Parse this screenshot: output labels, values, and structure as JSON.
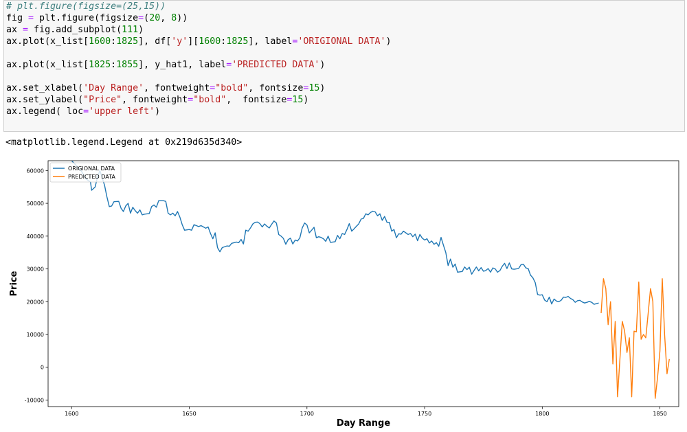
{
  "code_cell": {
    "lines": [
      [
        {
          "t": "# plt.figure(figsize=(25,15))",
          "c": "c"
        }
      ],
      [
        {
          "t": "fig ",
          "c": "p"
        },
        {
          "t": "=",
          "c": "o"
        },
        {
          "t": " plt.figure(figsize",
          "c": "p"
        },
        {
          "t": "=",
          "c": "o"
        },
        {
          "t": "(",
          "c": "p"
        },
        {
          "t": "20",
          "c": "n"
        },
        {
          "t": ", ",
          "c": "p"
        },
        {
          "t": "8",
          "c": "n"
        },
        {
          "t": "))",
          "c": "p"
        }
      ],
      [
        {
          "t": "ax ",
          "c": "p"
        },
        {
          "t": "=",
          "c": "o"
        },
        {
          "t": " fig.add_subplot(",
          "c": "p"
        },
        {
          "t": "111",
          "c": "n"
        },
        {
          "t": ")",
          "c": "p"
        }
      ],
      [
        {
          "t": "ax.plot(x_list[",
          "c": "p"
        },
        {
          "t": "1600",
          "c": "n"
        },
        {
          "t": ":",
          "c": "p"
        },
        {
          "t": "1825",
          "c": "n"
        },
        {
          "t": "], df[",
          "c": "p"
        },
        {
          "t": "'y'",
          "c": "s"
        },
        {
          "t": "][",
          "c": "p"
        },
        {
          "t": "1600",
          "c": "n"
        },
        {
          "t": ":",
          "c": "p"
        },
        {
          "t": "1825",
          "c": "n"
        },
        {
          "t": "], label",
          "c": "p"
        },
        {
          "t": "=",
          "c": "o"
        },
        {
          "t": "'ORIGIONAL DATA'",
          "c": "s"
        },
        {
          "t": ")",
          "c": "p"
        }
      ],
      [
        {
          "t": "",
          "c": "p"
        }
      ],
      [
        {
          "t": "ax.plot(x_list[",
          "c": "p"
        },
        {
          "t": "1825",
          "c": "n"
        },
        {
          "t": ":",
          "c": "p"
        },
        {
          "t": "1855",
          "c": "n"
        },
        {
          "t": "], y_hat1, label",
          "c": "p"
        },
        {
          "t": "=",
          "c": "o"
        },
        {
          "t": "'PREDICTED DATA'",
          "c": "s"
        },
        {
          "t": ")",
          "c": "p"
        }
      ],
      [
        {
          "t": "",
          "c": "p"
        }
      ],
      [
        {
          "t": "ax.set_xlabel(",
          "c": "p"
        },
        {
          "t": "'Day Range'",
          "c": "s"
        },
        {
          "t": ", fontweight",
          "c": "p"
        },
        {
          "t": "=",
          "c": "o"
        },
        {
          "t": "\"bold\"",
          "c": "s"
        },
        {
          "t": ", fontsize",
          "c": "p"
        },
        {
          "t": "=",
          "c": "o"
        },
        {
          "t": "15",
          "c": "n"
        },
        {
          "t": ")",
          "c": "p"
        }
      ],
      [
        {
          "t": "ax.set_ylabel(",
          "c": "p"
        },
        {
          "t": "\"Price\"",
          "c": "s"
        },
        {
          "t": ", fontweight",
          "c": "p"
        },
        {
          "t": "=",
          "c": "o"
        },
        {
          "t": "\"bold\"",
          "c": "s"
        },
        {
          "t": ",  fontsize",
          "c": "p"
        },
        {
          "t": "=",
          "c": "o"
        },
        {
          "t": "15",
          "c": "n"
        },
        {
          "t": ")",
          "c": "p"
        }
      ],
      [
        {
          "t": "ax.legend( loc",
          "c": "p"
        },
        {
          "t": "=",
          "c": "o"
        },
        {
          "t": "'upper left'",
          "c": "s"
        },
        {
          "t": ")",
          "c": "p"
        }
      ]
    ]
  },
  "output_text": "<matplotlib.legend.Legend at 0x219d635d340>",
  "chart_data": {
    "type": "line",
    "xlabel": "Day Range",
    "ylabel": "Price",
    "xlim": [
      1590,
      1858
    ],
    "ylim": [
      -12000,
      63000
    ],
    "xticks": [
      1600,
      1650,
      1700,
      1750,
      1800,
      1850
    ],
    "yticks": [
      -10000,
      0,
      10000,
      20000,
      30000,
      40000,
      50000,
      60000
    ],
    "legend_position": "upper left",
    "grid": false,
    "series": [
      {
        "name": "ORIGIONAL DATA",
        "color": "#1f77b4",
        "points": [
          [
            1600,
            63000
          ],
          [
            1604,
            60000
          ],
          [
            1606,
            57500
          ],
          [
            1608,
            56500
          ],
          [
            1608.5,
            54000
          ],
          [
            1610,
            55000
          ],
          [
            1611,
            58000
          ],
          [
            1612,
            60000
          ],
          [
            1614,
            55500
          ],
          [
            1615,
            52000
          ],
          [
            1616,
            49000
          ],
          [
            1617,
            49200
          ],
          [
            1618,
            50500
          ],
          [
            1620,
            50600
          ],
          [
            1621,
            48500
          ],
          [
            1622,
            47500
          ],
          [
            1623,
            49200
          ],
          [
            1624,
            50000
          ],
          [
            1625,
            47000
          ],
          [
            1626,
            48800
          ],
          [
            1627,
            47800
          ],
          [
            1628,
            47000
          ],
          [
            1629,
            48000
          ],
          [
            1630,
            46500
          ],
          [
            1631,
            46700
          ],
          [
            1633,
            46900
          ],
          [
            1634,
            49000
          ],
          [
            1635,
            49500
          ],
          [
            1636,
            48800
          ],
          [
            1637,
            50800
          ],
          [
            1639,
            50800
          ],
          [
            1640,
            50600
          ],
          [
            1641,
            47000
          ],
          [
            1642,
            46500
          ],
          [
            1643,
            47000
          ],
          [
            1644,
            46200
          ],
          [
            1645,
            47500
          ],
          [
            1646,
            45800
          ],
          [
            1647,
            43500
          ],
          [
            1648,
            41800
          ],
          [
            1650,
            42000
          ],
          [
            1651,
            41800
          ],
          [
            1652,
            43500
          ],
          [
            1653,
            43200
          ],
          [
            1654,
            42900
          ],
          [
            1655,
            43200
          ],
          [
            1656,
            42800
          ],
          [
            1657,
            42400
          ],
          [
            1658,
            42800
          ],
          [
            1659,
            40800
          ],
          [
            1660,
            39200
          ],
          [
            1661,
            41000
          ],
          [
            1662,
            36500
          ],
          [
            1663,
            35200
          ],
          [
            1664,
            36500
          ],
          [
            1666,
            37000
          ],
          [
            1667,
            36900
          ],
          [
            1668,
            37800
          ],
          [
            1670,
            38200
          ],
          [
            1671,
            38000
          ],
          [
            1672,
            39000
          ],
          [
            1673,
            37600
          ],
          [
            1674,
            41800
          ],
          [
            1675,
            41500
          ],
          [
            1676,
            42500
          ],
          [
            1677,
            43700
          ],
          [
            1678,
            44200
          ],
          [
            1679,
            44300
          ],
          [
            1680,
            43800
          ],
          [
            1681,
            42800
          ],
          [
            1682,
            43700
          ],
          [
            1683,
            43000
          ],
          [
            1684,
            42500
          ],
          [
            1685,
            43600
          ],
          [
            1686,
            44600
          ],
          [
            1687,
            44000
          ],
          [
            1688,
            40500
          ],
          [
            1689,
            40000
          ],
          [
            1690,
            39300
          ],
          [
            1691,
            37500
          ],
          [
            1692,
            38900
          ],
          [
            1693,
            39400
          ],
          [
            1694,
            37600
          ],
          [
            1695,
            38800
          ],
          [
            1696,
            38500
          ],
          [
            1697,
            39500
          ],
          [
            1698,
            42500
          ],
          [
            1699,
            44000
          ],
          [
            1700,
            43400
          ],
          [
            1701,
            41000
          ],
          [
            1702,
            41800
          ],
          [
            1703,
            42700
          ],
          [
            1704,
            39500
          ],
          [
            1705,
            39800
          ],
          [
            1706,
            39600
          ],
          [
            1707,
            39200
          ],
          [
            1708,
            38400
          ],
          [
            1709,
            40000
          ],
          [
            1710,
            38100
          ],
          [
            1712,
            38300
          ],
          [
            1713,
            40200
          ],
          [
            1714,
            39200
          ],
          [
            1715,
            40800
          ],
          [
            1716,
            40500
          ],
          [
            1717,
            42000
          ],
          [
            1718,
            43800
          ],
          [
            1719,
            41500
          ],
          [
            1720,
            42200
          ],
          [
            1721,
            43000
          ],
          [
            1722,
            43700
          ],
          [
            1723,
            45200
          ],
          [
            1724,
            45400
          ],
          [
            1725,
            46800
          ],
          [
            1726,
            46500
          ],
          [
            1727,
            47200
          ],
          [
            1728,
            47600
          ],
          [
            1729,
            47400
          ],
          [
            1730,
            46200
          ],
          [
            1731,
            46800
          ],
          [
            1732,
            44800
          ],
          [
            1733,
            46000
          ],
          [
            1734,
            44200
          ],
          [
            1735,
            44200
          ],
          [
            1736,
            41500
          ],
          [
            1737,
            42000
          ],
          [
            1738,
            39500
          ],
          [
            1739,
            40700
          ],
          [
            1740,
            40600
          ],
          [
            1741,
            41500
          ],
          [
            1742,
            41000
          ],
          [
            1743,
            40500
          ],
          [
            1744,
            40800
          ],
          [
            1745,
            39800
          ],
          [
            1746,
            40600
          ],
          [
            1747,
            38600
          ],
          [
            1748,
            40500
          ],
          [
            1749,
            39400
          ],
          [
            1750,
            38800
          ],
          [
            1751,
            39200
          ],
          [
            1752,
            37900
          ],
          [
            1753,
            38500
          ],
          [
            1754,
            37500
          ],
          [
            1755,
            38000
          ],
          [
            1756,
            36900
          ],
          [
            1757,
            39600
          ],
          [
            1758,
            37200
          ],
          [
            1759,
            35000
          ],
          [
            1760,
            31000
          ],
          [
            1761,
            33000
          ],
          [
            1762,
            30500
          ],
          [
            1763,
            31500
          ],
          [
            1764,
            29000
          ],
          [
            1766,
            29200
          ],
          [
            1767,
            30600
          ],
          [
            1768,
            29800
          ],
          [
            1769,
            30500
          ],
          [
            1770,
            28400
          ],
          [
            1771,
            29500
          ],
          [
            1772,
            30600
          ],
          [
            1773,
            29400
          ],
          [
            1774,
            30400
          ],
          [
            1775,
            29300
          ],
          [
            1776,
            29500
          ],
          [
            1777,
            30100
          ],
          [
            1778,
            29000
          ],
          [
            1779,
            30300
          ],
          [
            1780,
            30000
          ],
          [
            1781,
            29000
          ],
          [
            1782,
            29500
          ],
          [
            1783,
            30800
          ],
          [
            1784,
            31700
          ],
          [
            1785,
            30100
          ],
          [
            1786,
            31800
          ],
          [
            1787,
            30000
          ],
          [
            1788,
            29900
          ],
          [
            1789,
            30000
          ],
          [
            1790,
            30200
          ],
          [
            1791,
            31300
          ],
          [
            1792,
            31400
          ],
          [
            1793,
            30300
          ],
          [
            1794,
            30100
          ],
          [
            1795,
            28100
          ],
          [
            1796,
            27300
          ],
          [
            1797,
            25800
          ],
          [
            1798,
            22200
          ],
          [
            1799,
            22000
          ],
          [
            1800,
            22100
          ],
          [
            1801,
            20500
          ],
          [
            1802,
            20000
          ],
          [
            1803,
            21400
          ],
          [
            1804,
            19300
          ],
          [
            1805,
            20800
          ],
          [
            1806,
            20200
          ],
          [
            1807,
            20000
          ],
          [
            1808,
            20400
          ],
          [
            1809,
            21400
          ],
          [
            1810,
            21300
          ],
          [
            1811,
            21600
          ],
          [
            1812,
            21000
          ],
          [
            1813,
            20600
          ],
          [
            1814,
            19800
          ],
          [
            1815,
            20300
          ],
          [
            1816,
            20400
          ],
          [
            1817,
            19900
          ],
          [
            1818,
            19600
          ],
          [
            1819,
            19800
          ],
          [
            1820,
            20100
          ],
          [
            1821,
            19800
          ],
          [
            1822,
            19200
          ],
          [
            1824,
            19600
          ]
        ]
      },
      {
        "name": "PREDICTED DATA",
        "color": "#ff7f0e",
        "points": [
          [
            1825,
            16500
          ],
          [
            1826,
            27000
          ],
          [
            1827,
            24000
          ],
          [
            1828,
            13000
          ],
          [
            1829,
            20000
          ],
          [
            1830,
            1000
          ],
          [
            1831,
            14000
          ],
          [
            1832,
            -9000
          ],
          [
            1834,
            14000
          ],
          [
            1835,
            11000
          ],
          [
            1836,
            4500
          ],
          [
            1837,
            9000
          ],
          [
            1838,
            -9000
          ],
          [
            1839,
            11000
          ],
          [
            1840,
            10800
          ],
          [
            1841,
            26000
          ],
          [
            1842,
            8500
          ],
          [
            1843,
            10000
          ],
          [
            1844,
            9000
          ],
          [
            1845,
            16500
          ],
          [
            1846,
            24000
          ],
          [
            1847,
            20000
          ],
          [
            1848,
            -9500
          ],
          [
            1849,
            -3000
          ],
          [
            1850,
            5000
          ],
          [
            1851,
            27000
          ],
          [
            1852,
            10000
          ],
          [
            1853,
            -2000
          ],
          [
            1854,
            2500
          ]
        ]
      }
    ]
  }
}
